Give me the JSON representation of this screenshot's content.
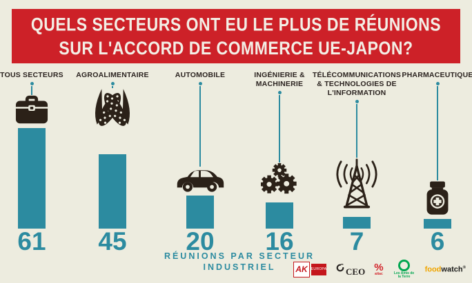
{
  "header": {
    "title_line1": "QUELS SECTEURS ONT EU LE PLUS DE RÉUNIONS",
    "title_line2": "SUR L'ACCORD DE COMMERCE UE-JAPON?"
  },
  "chart_data": {
    "type": "bar",
    "title": "QUELS SECTEURS ONT EU LE PLUS DE RÉUNIONS SUR L'ACCORD DE COMMERCE UE-JAPON?",
    "categories": [
      "TOUS SECTEURS",
      "AGROALIMENTAIRE",
      "AUTOMOBILE",
      "INGÉNIERIE & MACHINERIE",
      "TÉLÉCOMMUNICATIONS & TECHNOLOGIES DE L'INFORMATION",
      "PHARMACEUTIQUE"
    ],
    "values": [
      61,
      45,
      20,
      16,
      7,
      6
    ],
    "xlabel": "RÉUNIONS PAR SECTEUR INDUSTRIEL",
    "ylabel": "",
    "ylim": [
      0,
      61
    ],
    "grid": false,
    "legend": "none",
    "bar_color": "#2c8ba0",
    "icons": [
      "briefcase",
      "corn",
      "car",
      "gears",
      "radio-tower",
      "medicine-bottle"
    ]
  },
  "colors": {
    "background": "#edecdf",
    "banner_red": "#cd2128",
    "banner_text": "#f3efe6",
    "teal": "#2c8ba0",
    "icon_dark": "#2b2118",
    "label_dark": "#2b2320"
  },
  "footer": {
    "ak_text": "AK",
    "ak_sub": "EUROPA",
    "ceo_text": "CEO",
    "attac_symbol": "%",
    "attac_name": "attac",
    "amis_name": "Les Amis de la Terre",
    "foodwatch_part1": "food",
    "foodwatch_part2": "watch",
    "foodwatch_mark": "®"
  }
}
